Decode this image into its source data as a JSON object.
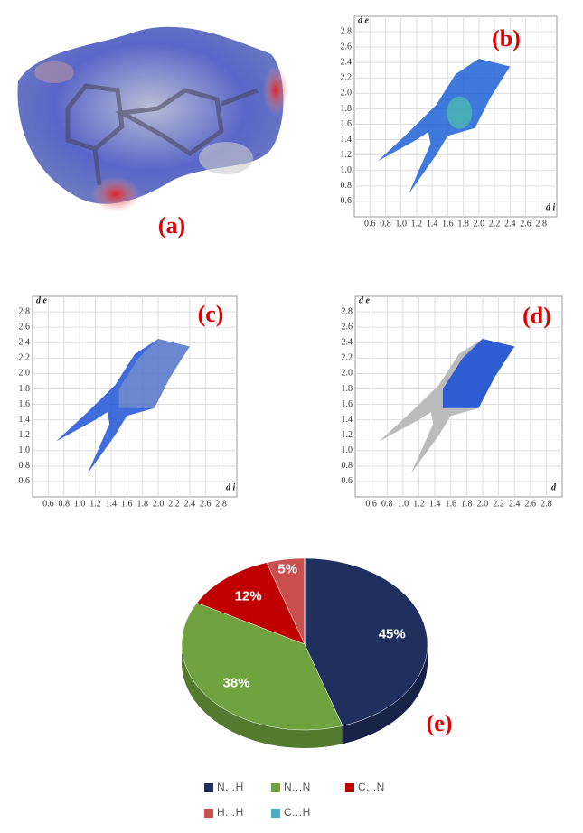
{
  "surface": {
    "label": "(a)"
  },
  "chart_data": [
    {
      "type": "fingerprint",
      "label": "(b)",
      "xlabel": "d i",
      "ylabel": "d e",
      "xlim": [
        0.4,
        3.0
      ],
      "ylim": [
        0.4,
        3.0
      ],
      "xticks": [
        0.6,
        0.8,
        {
          "value": 1,
          "label": "1.0"
        },
        1.2,
        1.4,
        1.6,
        1.8,
        {
          "value": 2,
          "label": "2.0"
        },
        2.2,
        2.4,
        2.6,
        2.8
      ],
      "yticks": [
        0.6,
        0.8,
        {
          "value": 1,
          "label": "1.0"
        },
        1.2,
        1.4,
        1.6,
        1.8,
        {
          "value": 2,
          "label": "2.0"
        },
        2.2,
        2.4,
        2.6,
        2.8
      ],
      "grid": true,
      "color": "#1f62d6"
    },
    {
      "type": "fingerprint",
      "label": "(c)",
      "xlabel": "d i",
      "ylabel": "d e",
      "xlim": [
        0.4,
        3.0
      ],
      "ylim": [
        0.4,
        3.0
      ],
      "xticks": [
        0.6,
        0.8,
        {
          "value": 1,
          "label": "1.0"
        },
        1.2,
        1.4,
        1.6,
        1.8,
        {
          "value": 2,
          "label": "2.0"
        },
        2.2,
        2.4,
        2.6,
        2.8
      ],
      "yticks": [
        0.6,
        0.8,
        {
          "value": 1,
          "label": "1.0"
        },
        1.2,
        1.4,
        1.6,
        1.8,
        {
          "value": 2,
          "label": "2.0"
        },
        2.2,
        2.4,
        2.6,
        2.8
      ],
      "grid": true,
      "color": "#1f52d6"
    },
    {
      "type": "fingerprint",
      "label": "(d)",
      "xlabel": "d",
      "ylabel": "d e",
      "xlim": [
        0.4,
        3.0
      ],
      "ylim": [
        0.4,
        3.0
      ],
      "xticks": [
        0.6,
        0.8,
        {
          "value": 1,
          "label": "1.0"
        },
        1.2,
        1.4,
        1.6,
        1.8,
        {
          "value": 2,
          "label": "2.0"
        },
        2.2,
        2.4,
        2.6,
        2.8
      ],
      "yticks": [
        0.6,
        0.8,
        {
          "value": 1,
          "label": "1.0"
        },
        1.2,
        1.4,
        1.6,
        1.8,
        {
          "value": 2,
          "label": "2.0"
        },
        2.2,
        2.4,
        2.6,
        2.8
      ],
      "grid": true,
      "color": "#1f52d6"
    },
    {
      "type": "pie",
      "label": "(e)",
      "categories": [
        "N…H",
        "N…N",
        "C…N",
        "H…H",
        "C…H"
      ],
      "values": [
        45,
        38,
        12,
        5,
        0
      ],
      "value_labels": [
        "45%",
        "38%",
        "12%",
        "5%",
        null
      ],
      "colors": [
        "#1f2f5e",
        "#70a33f",
        "#c00000",
        "#c9504e",
        "#4bacc6"
      ]
    }
  ]
}
